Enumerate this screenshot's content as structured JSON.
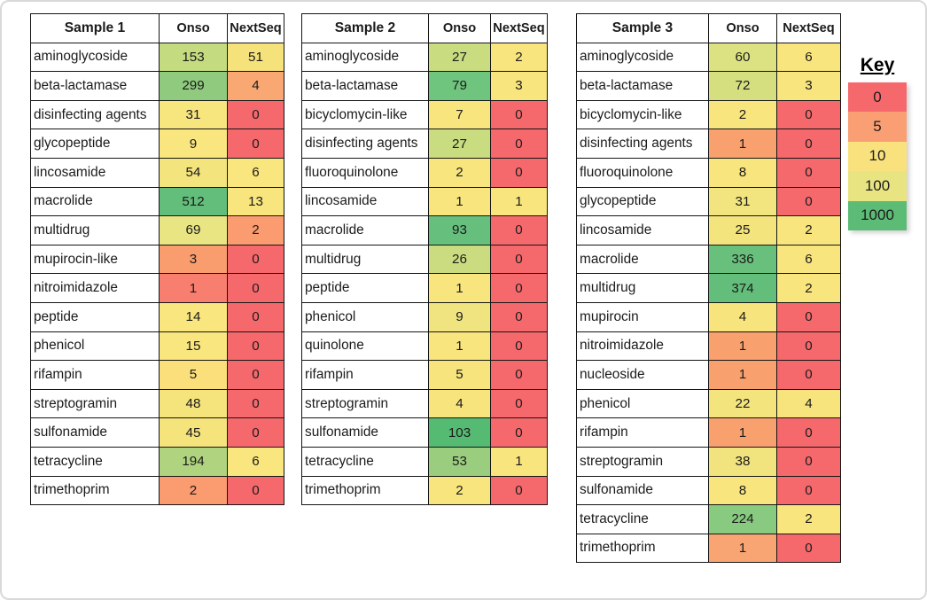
{
  "chart_data": {
    "type": "heatmap-table",
    "description": "Counts of antimicrobial resistance gene classes detected per sample, Onso vs NextSeq, heat-colored by magnitude",
    "legend": {
      "title": "Key",
      "position": "right",
      "entries": [
        {
          "label": "0",
          "color": "#F5696D"
        },
        {
          "label": "5",
          "color": "#FA9E73"
        },
        {
          "label": "10",
          "color": "#F9E27D"
        },
        {
          "label": "100",
          "color": "#E8E482"
        },
        {
          "label": "1000",
          "color": "#5CBB75"
        }
      ]
    },
    "tables": [
      {
        "title": "Sample 1",
        "columns": [
          "Onso",
          "NextSeq"
        ],
        "rows": [
          {
            "label": "aminoglycoside",
            "onso": "153",
            "onso_color": "#C4DB80",
            "nextseq": "51",
            "nextseq_color": "#F5E27B"
          },
          {
            "label": "beta-lactamase",
            "onso": "299",
            "onso_color": "#8FCA7E",
            "nextseq": "4",
            "nextseq_color": "#F9A873"
          },
          {
            "label": "disinfecting agents",
            "onso": "31",
            "onso_color": "#F7E57E",
            "nextseq": "0",
            "nextseq_color": "#F5696D"
          },
          {
            "label": "glycopeptide",
            "onso": "9",
            "onso_color": "#F9E67E",
            "nextseq": "0",
            "nextseq_color": "#F5696D"
          },
          {
            "label": "lincosamide",
            "onso": "54",
            "onso_color": "#F4E47D",
            "nextseq": "6",
            "nextseq_color": "#F9E67E"
          },
          {
            "label": "macrolide",
            "onso": "512",
            "onso_color": "#63BE7B",
            "nextseq": "13",
            "nextseq_color": "#F8E57E"
          },
          {
            "label": "multidrug",
            "onso": "69",
            "onso_color": "#E9E583",
            "nextseq": "2",
            "nextseq_color": "#FA9B70"
          },
          {
            "label": "mupirocin-like",
            "onso": "3",
            "onso_color": "#F99C6E",
            "nextseq": "0",
            "nextseq_color": "#F5696D"
          },
          {
            "label": "nitroimidazole",
            "onso": "1",
            "onso_color": "#F87E70",
            "nextseq": "0",
            "nextseq_color": "#F5696D"
          },
          {
            "label": "peptide",
            "onso": "14",
            "onso_color": "#F9E67E",
            "nextseq": "0",
            "nextseq_color": "#F5696D"
          },
          {
            "label": "phenicol",
            "onso": "15",
            "onso_color": "#F9E67E",
            "nextseq": "0",
            "nextseq_color": "#F5696D"
          },
          {
            "label": "rifampin",
            "onso": "5",
            "onso_color": "#FBDF7A",
            "nextseq": "0",
            "nextseq_color": "#F5696D"
          },
          {
            "label": "streptogramin",
            "onso": "48",
            "onso_color": "#F5E37C",
            "nextseq": "0",
            "nextseq_color": "#F5696D"
          },
          {
            "label": "sulfonamide",
            "onso": "45",
            "onso_color": "#F5E37C",
            "nextseq": "0",
            "nextseq_color": "#F5696D"
          },
          {
            "label": "tetracycline",
            "onso": "194",
            "onso_color": "#AFD37E",
            "nextseq": "6",
            "nextseq_color": "#F9E67E"
          },
          {
            "label": "trimethoprim",
            "onso": "2",
            "onso_color": "#FA9B70",
            "nextseq": "0",
            "nextseq_color": "#F5696D"
          }
        ]
      },
      {
        "title": "Sample 2",
        "columns": [
          "Onso",
          "NextSeq"
        ],
        "rows": [
          {
            "label": "aminoglycoside",
            "onso": "27",
            "onso_color": "#C9DC80",
            "nextseq": "2",
            "nextseq_color": "#F8E57D"
          },
          {
            "label": "beta-lactamase",
            "onso": "79",
            "onso_color": "#6FC47E",
            "nextseq": "3",
            "nextseq_color": "#F8E57D"
          },
          {
            "label": "bicyclomycin-like",
            "onso": "7",
            "onso_color": "#F8E57D",
            "nextseq": "0",
            "nextseq_color": "#F5696D"
          },
          {
            "label": "disinfecting agents",
            "onso": "27",
            "onso_color": "#C9DC80",
            "nextseq": "0",
            "nextseq_color": "#F5696D"
          },
          {
            "label": "fluoroquinolone",
            "onso": "2",
            "onso_color": "#F8E57D",
            "nextseq": "0",
            "nextseq_color": "#F5696D"
          },
          {
            "label": "lincosamide",
            "onso": "1",
            "onso_color": "#F8E57D",
            "nextseq": "1",
            "nextseq_color": "#F8E57D"
          },
          {
            "label": "macrolide",
            "onso": "93",
            "onso_color": "#66BF7C",
            "nextseq": "0",
            "nextseq_color": "#F5696D"
          },
          {
            "label": "multidrug",
            "onso": "26",
            "onso_color": "#CBDC80",
            "nextseq": "0",
            "nextseq_color": "#F5696D"
          },
          {
            "label": "peptide",
            "onso": "1",
            "onso_color": "#F8E57D",
            "nextseq": "0",
            "nextseq_color": "#F5696D"
          },
          {
            "label": "phenicol",
            "onso": "9",
            "onso_color": "#EFE480",
            "nextseq": "0",
            "nextseq_color": "#F5696D"
          },
          {
            "label": "quinolone",
            "onso": "1",
            "onso_color": "#F8E57D",
            "nextseq": "0",
            "nextseq_color": "#F5696D"
          },
          {
            "label": "rifampin",
            "onso": "5",
            "onso_color": "#F8E47D",
            "nextseq": "0",
            "nextseq_color": "#F5696D"
          },
          {
            "label": "streptogramin",
            "onso": "4",
            "onso_color": "#F8E47D",
            "nextseq": "0",
            "nextseq_color": "#F5696D"
          },
          {
            "label": "sulfonamide",
            "onso": "103",
            "onso_color": "#55BB73",
            "nextseq": "0",
            "nextseq_color": "#F5696D"
          },
          {
            "label": "tetracycline",
            "onso": "53",
            "onso_color": "#9BCD7F",
            "nextseq": "1",
            "nextseq_color": "#F8E57D"
          },
          {
            "label": "trimethoprim",
            "onso": "2",
            "onso_color": "#F8E57D",
            "nextseq": "0",
            "nextseq_color": "#F5696D"
          }
        ]
      },
      {
        "title": "Sample 3",
        "columns": [
          "Onso",
          "NextSeq"
        ],
        "rows": [
          {
            "label": "aminoglycoside",
            "onso": "60",
            "onso_color": "#DCE181",
            "nextseq": "6",
            "nextseq_color": "#F8E57D"
          },
          {
            "label": "beta-lactamase",
            "onso": "72",
            "onso_color": "#D5DF80",
            "nextseq": "3",
            "nextseq_color": "#F8E57D"
          },
          {
            "label": "bicyclomycin-like",
            "onso": "2",
            "onso_color": "#F8E57D",
            "nextseq": "0",
            "nextseq_color": "#F5696D"
          },
          {
            "label": "disinfecting agents",
            "onso": "1",
            "onso_color": "#F9A06F",
            "nextseq": "0",
            "nextseq_color": "#F5696D"
          },
          {
            "label": "fluoroquinolone",
            "onso": "8",
            "onso_color": "#F8E57D",
            "nextseq": "0",
            "nextseq_color": "#F5696D"
          },
          {
            "label": "glycopeptide",
            "onso": "31",
            "onso_color": "#F2E47E",
            "nextseq": "0",
            "nextseq_color": "#F5696D"
          },
          {
            "label": "lincosamide",
            "onso": "25",
            "onso_color": "#F4E47D",
            "nextseq": "2",
            "nextseq_color": "#F8E57D"
          },
          {
            "label": "macrolide",
            "onso": "336",
            "onso_color": "#68C07C",
            "nextseq": "6",
            "nextseq_color": "#F8E57D"
          },
          {
            "label": "multidrug",
            "onso": "374",
            "onso_color": "#63BE7B",
            "nextseq": "2",
            "nextseq_color": "#F8E57D"
          },
          {
            "label": "mupirocin",
            "onso": "4",
            "onso_color": "#F8E47C",
            "nextseq": "0",
            "nextseq_color": "#F5696D"
          },
          {
            "label": "nitroimidazole",
            "onso": "1",
            "onso_color": "#F9A06F",
            "nextseq": "0",
            "nextseq_color": "#F5696D"
          },
          {
            "label": "nucleoside",
            "onso": "1",
            "onso_color": "#F9A06F",
            "nextseq": "0",
            "nextseq_color": "#F5696D"
          },
          {
            "label": "phenicol",
            "onso": "22",
            "onso_color": "#F4E47D",
            "nextseq": "4",
            "nextseq_color": "#F8E47C"
          },
          {
            "label": "rifampin",
            "onso": "1",
            "onso_color": "#F9A06F",
            "nextseq": "0",
            "nextseq_color": "#F5696D"
          },
          {
            "label": "streptogramin",
            "onso": "38",
            "onso_color": "#F1E37D",
            "nextseq": "0",
            "nextseq_color": "#F5696D"
          },
          {
            "label": "sulfonamide",
            "onso": "8",
            "onso_color": "#F8E57D",
            "nextseq": "0",
            "nextseq_color": "#F5696D"
          },
          {
            "label": "tetracycline",
            "onso": "224",
            "onso_color": "#88CA80",
            "nextseq": "2",
            "nextseq_color": "#F8E57D"
          },
          {
            "label": "trimethoprim",
            "onso": "1",
            "onso_color": "#F9A473",
            "nextseq": "0",
            "nextseq_color": "#F5696D"
          }
        ]
      }
    ]
  }
}
